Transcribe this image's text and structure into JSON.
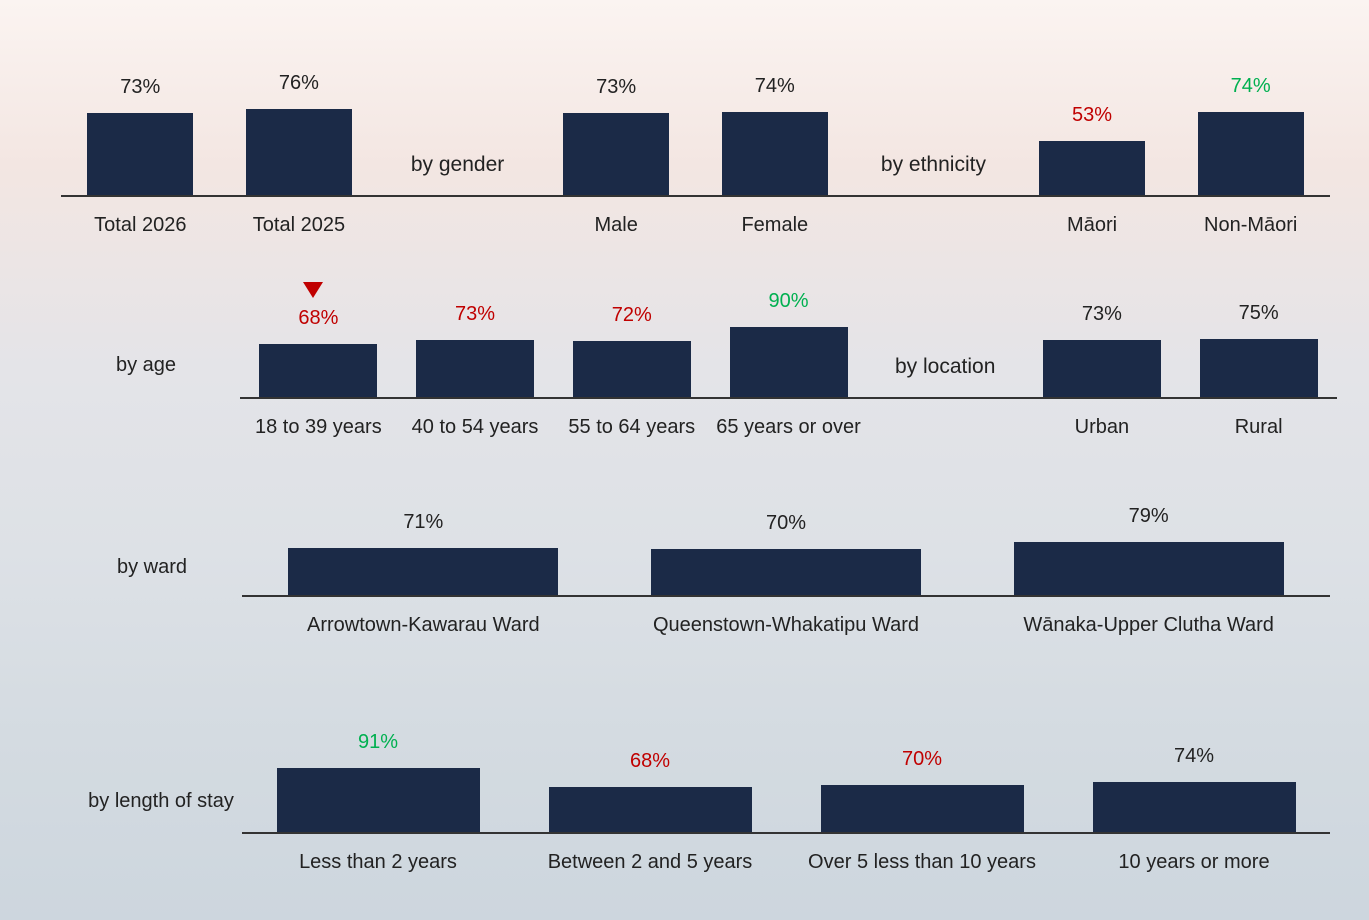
{
  "chart_data": [
    {
      "type": "bar",
      "color": "#1b2a47",
      "ylim": [
        15,
        100
      ],
      "categories": [
        "Total 2026",
        "Total 2025",
        null,
        "Male",
        "Female",
        null,
        "Māori",
        "Non-Māori"
      ],
      "section_labels": [
        null,
        null,
        "by gender",
        null,
        null,
        "by ethnicity",
        null,
        null
      ],
      "values": [
        73,
        76,
        null,
        73,
        74,
        null,
        53,
        74
      ],
      "value_labels": [
        "73%",
        "76%",
        null,
        "73%",
        "74%",
        null,
        "53%",
        "74%"
      ],
      "value_label_colors": [
        "#222222",
        "#222222",
        null,
        "#222222",
        "#222222",
        null,
        "#c00000",
        "#00b050"
      ]
    },
    {
      "type": "bar",
      "title": "by age",
      "color": "#1b2a47",
      "ylim": [
        0,
        100
      ],
      "categories": [
        "18 to 39 years",
        "40 to 54 years",
        "55 to 64 years",
        "65 years or over",
        null,
        "Urban",
        "Rural"
      ],
      "section_labels": [
        null,
        null,
        null,
        null,
        "by location",
        null,
        null
      ],
      "values": [
        68,
        73,
        72,
        90,
        null,
        73,
        75
      ],
      "value_labels": [
        "68%",
        "73%",
        "72%",
        "90%",
        null,
        "73%",
        "75%"
      ],
      "value_label_colors": [
        "#c00000",
        "#c00000",
        "#c00000",
        "#00b050",
        null,
        "#222222",
        "#222222"
      ]
    },
    {
      "type": "bar",
      "title": "by ward",
      "color": "#1b2a47",
      "ylim": [
        10,
        100
      ],
      "categories": [
        "Arrowtown-Kawarau Ward",
        "Queenstown-Whakatipu Ward",
        "Wānaka-Upper Clutha Ward"
      ],
      "values": [
        71,
        70,
        79
      ],
      "value_labels": [
        "71%",
        "70%",
        "79%"
      ],
      "value_label_colors": [
        "#222222",
        "#222222",
        "#222222"
      ]
    },
    {
      "type": "bar",
      "title": "by length of stay",
      "color": "#1b2a47",
      "ylim": [
        15,
        100
      ],
      "categories": [
        "Less than 2 years",
        "Between 2 and 5 years",
        "Over 5 less than 10 years",
        "10 years or more"
      ],
      "values": [
        91,
        68,
        70,
        74
      ],
      "value_labels": [
        "91%",
        "68%",
        "70%",
        "74%"
      ],
      "value_label_colors": [
        "#00b050",
        "#c00000",
        "#c00000",
        "#222222"
      ]
    }
  ]
}
